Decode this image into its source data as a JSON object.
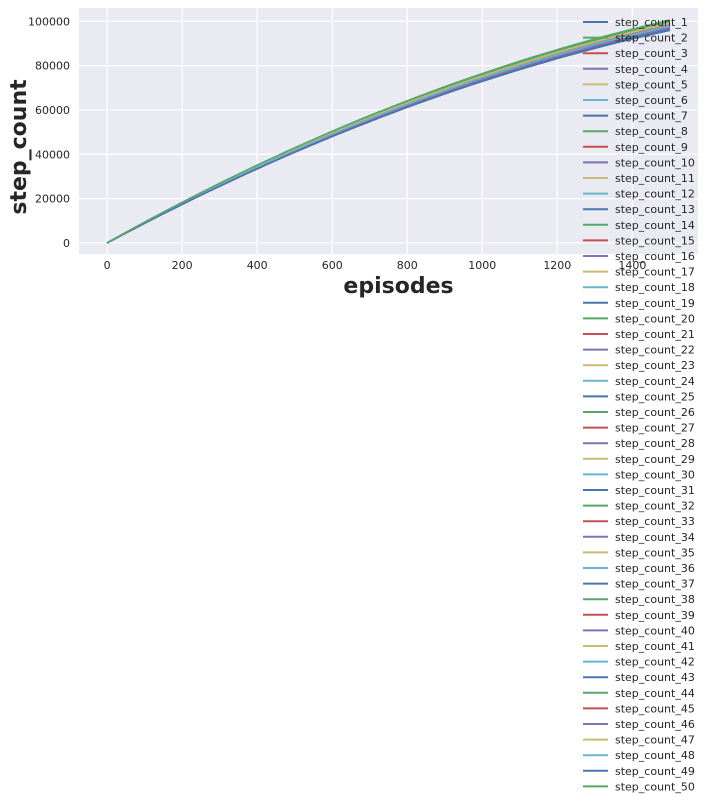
{
  "chart_data": {
    "type": "line",
    "title": "",
    "xlabel": "episodes",
    "ylabel": "step_count",
    "xlim": [
      -75,
      1575
    ],
    "ylim": [
      -5000,
      106000
    ],
    "xticks": [
      0,
      200,
      400,
      600,
      800,
      1000,
      1200,
      1400
    ],
    "yticks": [
      0,
      20000,
      40000,
      60000,
      80000,
      100000
    ],
    "grid": true,
    "legend_position": "right",
    "colors": [
      "#4c72b0",
      "#55a868",
      "#c44e52",
      "#8172b2",
      "#ccb974",
      "#64b5cd"
    ],
    "x_end": 1500,
    "series": [
      {
        "name": "step_count_1",
        "y_end": 97000
      },
      {
        "name": "step_count_2",
        "y_end": 100000
      },
      {
        "name": "step_count_3",
        "y_end": 96000
      },
      {
        "name": "step_count_4",
        "y_end": 98500
      },
      {
        "name": "step_count_5",
        "y_end": 99000
      },
      {
        "name": "step_count_6",
        "y_end": 97500
      },
      {
        "name": "step_count_7",
        "y_end": 96500
      },
      {
        "name": "step_count_8",
        "y_end": 100500
      },
      {
        "name": "step_count_9",
        "y_end": 98000
      },
      {
        "name": "step_count_10",
        "y_end": 97000
      },
      {
        "name": "step_count_11",
        "y_end": 99500
      },
      {
        "name": "step_count_12",
        "y_end": 98000
      },
      {
        "name": "step_count_13",
        "y_end": 96000
      },
      {
        "name": "step_count_14",
        "y_end": 100000
      },
      {
        "name": "step_count_15",
        "y_end": 97500
      },
      {
        "name": "step_count_16",
        "y_end": 98500
      },
      {
        "name": "step_count_17",
        "y_end": 99000
      },
      {
        "name": "step_count_18",
        "y_end": 97000
      },
      {
        "name": "step_count_19",
        "y_end": 96500
      },
      {
        "name": "step_count_20",
        "y_end": 99500
      },
      {
        "name": "step_count_21",
        "y_end": 98000
      },
      {
        "name": "step_count_22",
        "y_end": 97000
      },
      {
        "name": "step_count_23",
        "y_end": 98500
      },
      {
        "name": "step_count_24",
        "y_end": 99000
      },
      {
        "name": "step_count_25",
        "y_end": 96000
      },
      {
        "name": "step_count_26",
        "y_end": 100000
      },
      {
        "name": "step_count_27",
        "y_end": 97500
      },
      {
        "name": "step_count_28",
        "y_end": 98000
      },
      {
        "name": "step_count_29",
        "y_end": 99500
      },
      {
        "name": "step_count_30",
        "y_end": 97000
      },
      {
        "name": "step_count_31",
        "y_end": 96500
      },
      {
        "name": "step_count_32",
        "y_end": 100500
      },
      {
        "name": "step_count_33",
        "y_end": 98000
      },
      {
        "name": "step_count_34",
        "y_end": 97500
      },
      {
        "name": "step_count_35",
        "y_end": 99000
      },
      {
        "name": "step_count_36",
        "y_end": 98500
      },
      {
        "name": "step_count_37",
        "y_end": 96000
      },
      {
        "name": "step_count_38",
        "y_end": 100000
      },
      {
        "name": "step_count_39",
        "y_end": 97000
      },
      {
        "name": "step_count_40",
        "y_end": 98000
      },
      {
        "name": "step_count_41",
        "y_end": 99500
      },
      {
        "name": "step_count_42",
        "y_end": 97500
      },
      {
        "name": "step_count_43",
        "y_end": 96500
      },
      {
        "name": "step_count_44",
        "y_end": 100000
      },
      {
        "name": "step_count_45",
        "y_end": 98500
      },
      {
        "name": "step_count_46",
        "y_end": 97000
      },
      {
        "name": "step_count_47",
        "y_end": 99000
      },
      {
        "name": "step_count_48",
        "y_end": 98000
      },
      {
        "name": "step_count_49",
        "y_end": 96000
      },
      {
        "name": "step_count_50",
        "y_end": 100500
      }
    ]
  }
}
